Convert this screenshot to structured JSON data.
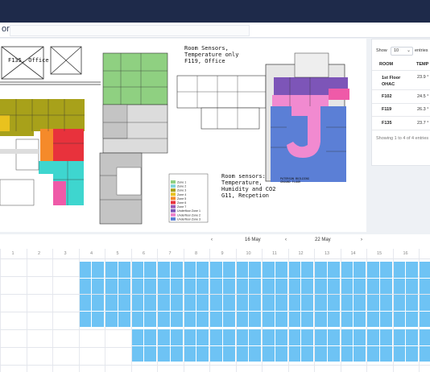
{
  "header": {
    "title_fragment": "or"
  },
  "floorplan": {
    "label_office": "F135, Office",
    "label_room_sensors_temp": "Room Sensors,\nTemperature only\nF119, Office",
    "label_room_sensors_full": "Room sensors:\nTemperature,\nHumidity and CO2\nG11, Recpetion",
    "building_caption": "PATERSON BUILDING\nGROUND FLOOR",
    "legend": [
      {
        "label": "Zone 1",
        "color": "#8fd081"
      },
      {
        "label": "Zone 2",
        "color": "#7fd4d8"
      },
      {
        "label": "Zone 3",
        "color": "#a8a11a"
      },
      {
        "label": "Zone 4",
        "color": "#e9c21e"
      },
      {
        "label": "Zone 5",
        "color": "#f58a2a"
      },
      {
        "label": "Zone 6",
        "color": "#e8323c"
      },
      {
        "label": "Zone 7",
        "color": "#9b59b6"
      },
      {
        "label": "Underfloor Zone 1",
        "color": "#7d55b8"
      },
      {
        "label": "Underfloor Zone 2",
        "color": "#ee82c9"
      },
      {
        "label": "Underfloor Zone 3",
        "color": "#5b7fd6"
      }
    ],
    "colors": {
      "green": "#8fd081",
      "cyan": "#3ed6cf",
      "olive": "#a8a11a",
      "yellow": "#e9c21e",
      "orange": "#f58a2a",
      "red": "#e8323c",
      "pink": "#ef5aa8",
      "purple": "#7d55b8",
      "lightpink": "#f18ad0",
      "blue": "#5b7fd6",
      "grey": "#c4c4c4"
    }
  },
  "table": {
    "show_label": "Show",
    "entries_value": "10",
    "entries_label": "entries",
    "columns": [
      "ROOM",
      "TEMP"
    ],
    "rows": [
      {
        "room": "1st Floor OHAC",
        "temp": "23.9 °"
      },
      {
        "room": "F102",
        "temp": "24.5 °"
      },
      {
        "room": "F119",
        "temp": "26.3 °"
      },
      {
        "room": "F135",
        "temp": "23.7 °"
      }
    ],
    "info": "Showing 1 to 4 of 4 entries"
  },
  "timeline": {
    "prev_icon": "chevron-left-icon",
    "next_icon": "chevron-right-icon",
    "date_start": "16 May",
    "date_end": "22 May",
    "days": [
      "1",
      "2",
      "3",
      "4",
      "5",
      "6",
      "7",
      "8",
      "9",
      "10",
      "11",
      "12",
      "13",
      "14",
      "15",
      "16",
      ""
    ],
    "cell_color": "#6ec3f4"
  }
}
